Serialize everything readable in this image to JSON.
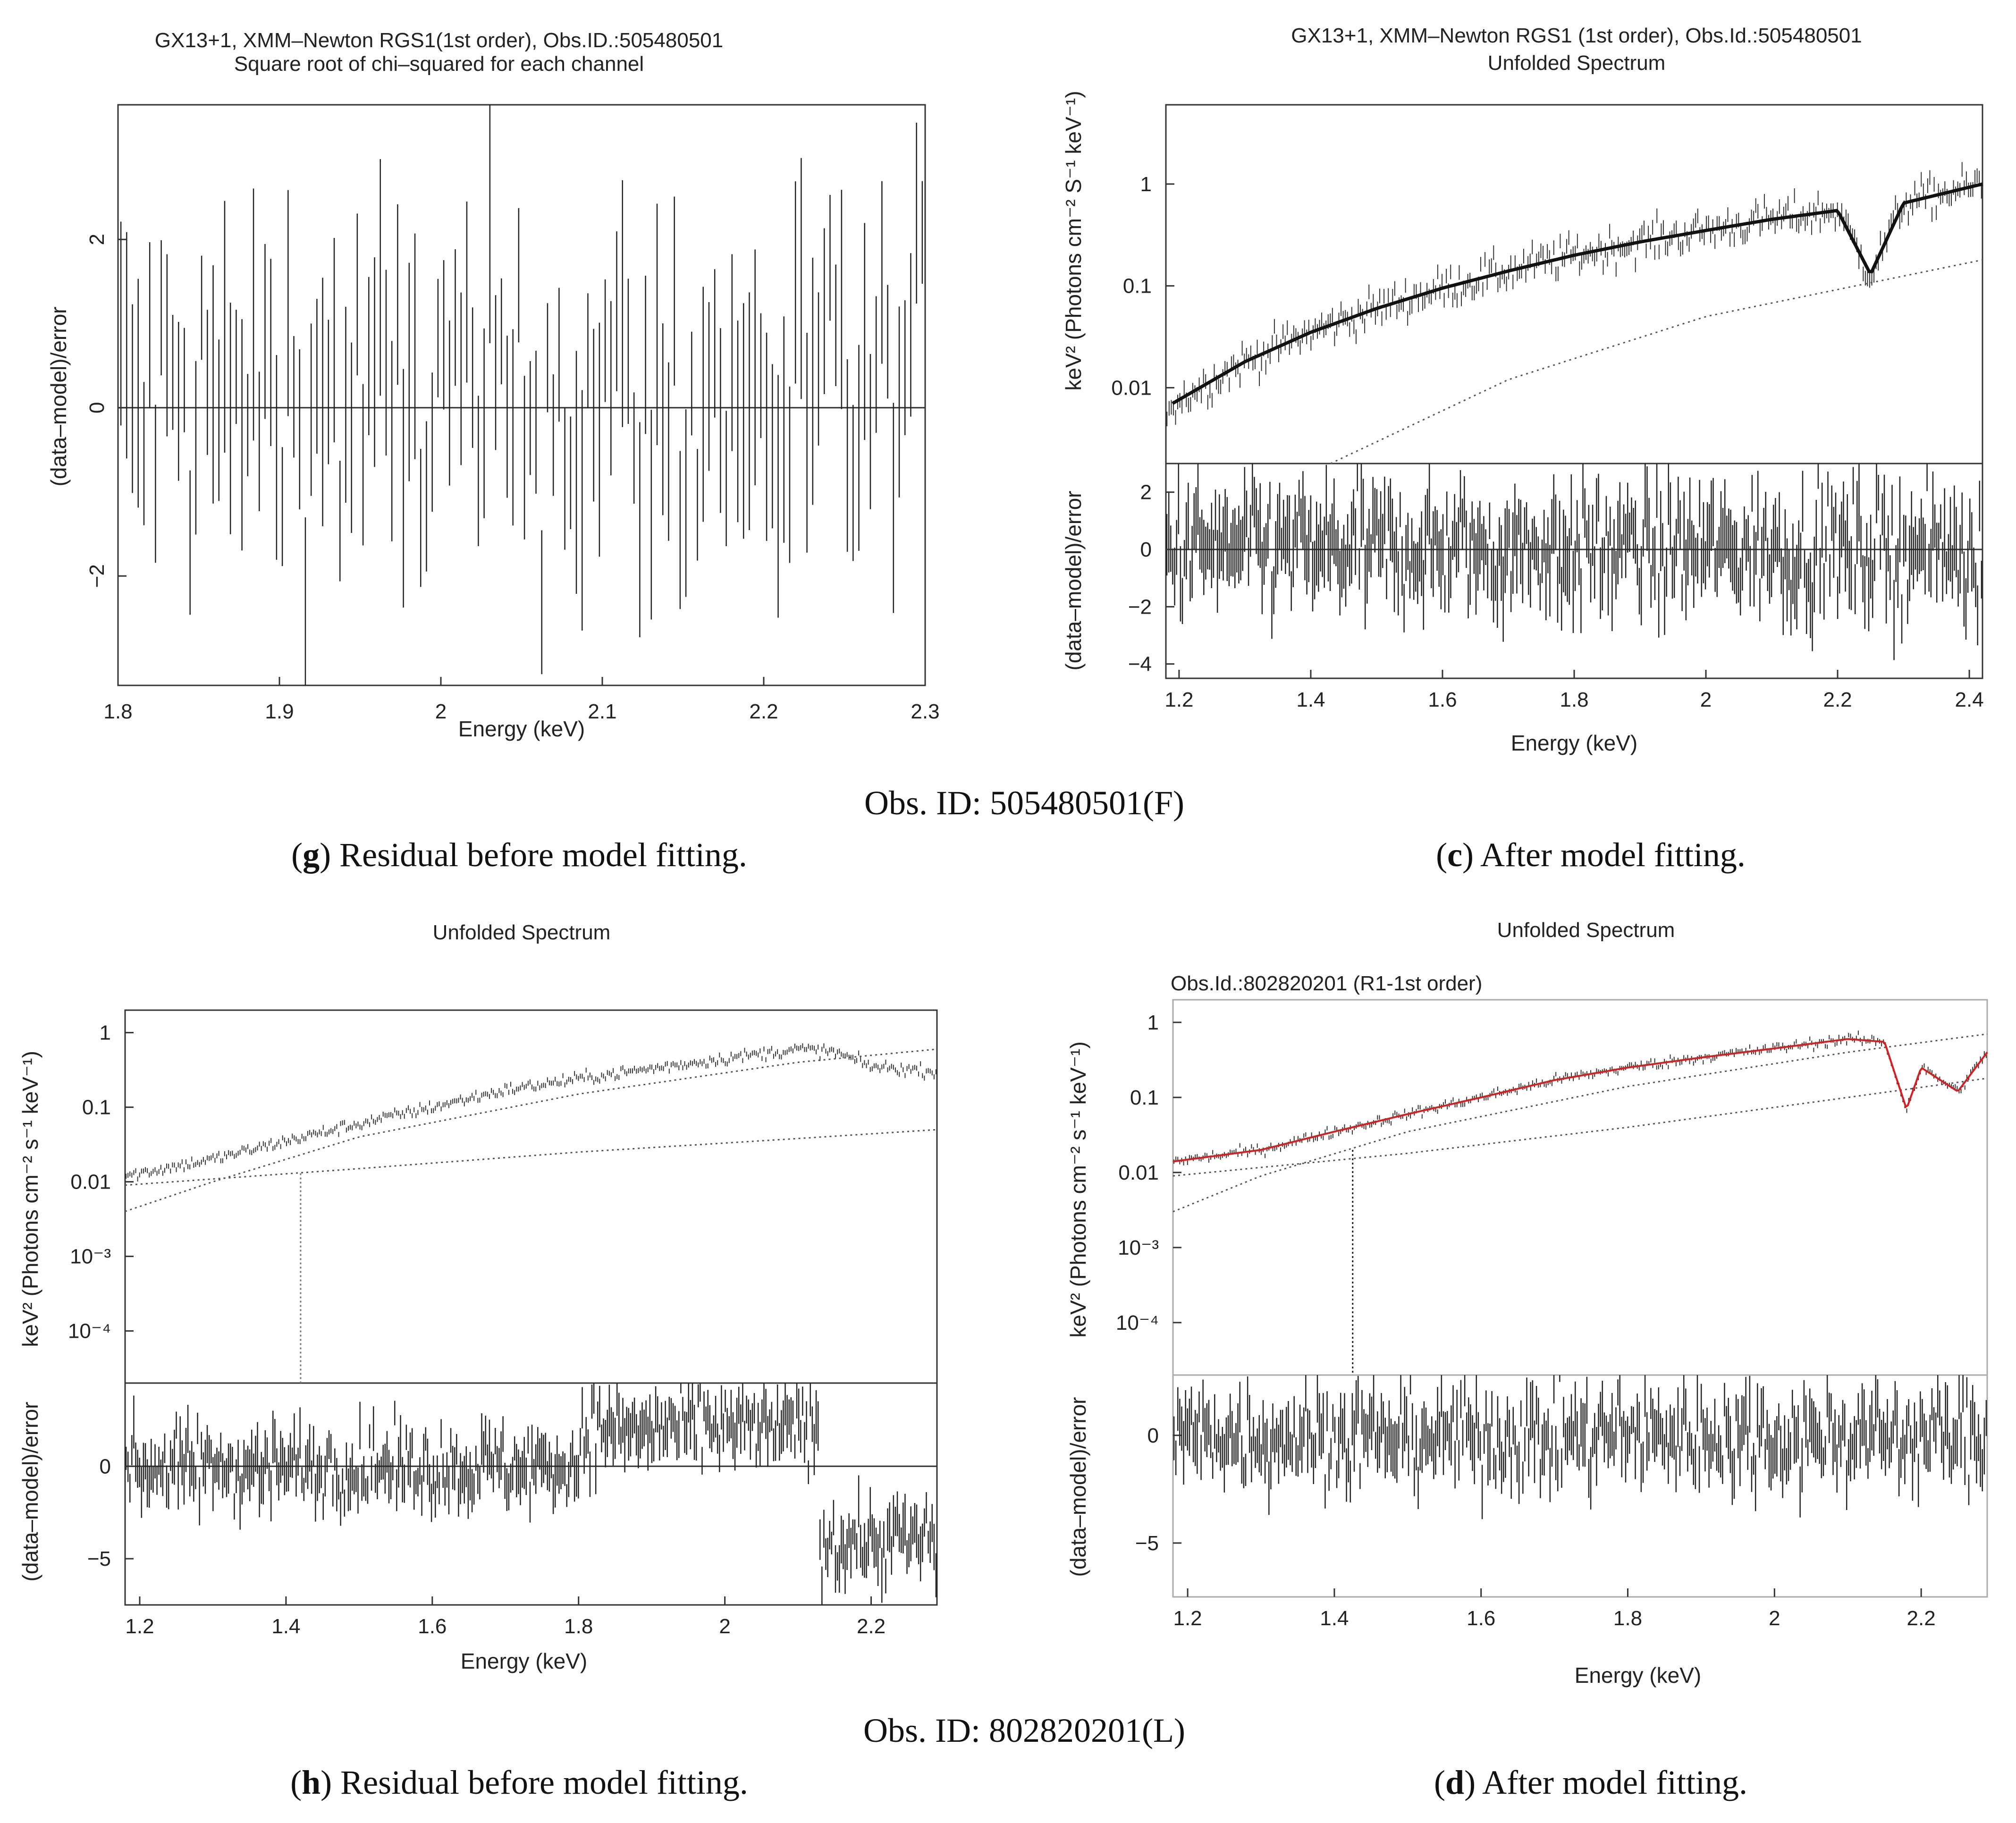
{
  "captions": {
    "obs_F": "Obs. ID: 505480501(F)",
    "obs_L": "Obs. ID: 802820201(L)",
    "g": {
      "letter": "g",
      "text": ") Residual before model fitting."
    },
    "c": {
      "letter": "c",
      "text": ") After model fitting."
    },
    "h": {
      "letter": "h",
      "text": ") Residual before model fitting."
    },
    "d": {
      "letter": "d",
      "text": ") After model fitting."
    }
  },
  "colors": {
    "data": "#111111",
    "model": "#111111",
    "model_red": "#d42020",
    "frame": "#333333"
  },
  "chart_data": [
    {
      "id": "g",
      "type": "scatter",
      "title": "GX13+1, XMM–Newton RGS1(1st order), Obs.ID.:505480501",
      "subtitle": "Square root of chi–squared for each channel",
      "xlabel": "Energy (keV)",
      "ylabel": "(data–model)/error",
      "xlim": [
        1.8,
        2.3
      ],
      "ylim": [
        -3.3,
        3.6
      ],
      "xticks": [
        "1.8",
        "1.9",
        "2",
        "2.1",
        "2.2",
        "2.3"
      ],
      "yticks": [
        "−2",
        "0",
        "2"
      ],
      "series": [
        {
          "name": "residuals",
          "description": "scattered residuals around 0, mostly within ±2 with error bars of about ±1",
          "n_points": 140,
          "mean": 0,
          "spread": 1.0
        }
      ]
    },
    {
      "id": "c",
      "type": "line",
      "title": "GX13+1, XMM–Newton RGS1 (1st order), Obs.Id.:505480501",
      "subtitle": "Unfolded Spectrum",
      "xlabel": "Energy (keV)",
      "ylabel_top": "keV² (Photons cm⁻² S⁻¹ keV⁻¹)",
      "ylabel_bottom": "(data–model)/error",
      "xlim": [
        1.18,
        2.42
      ],
      "ylim_top_log": [
        0.0018,
        6
      ],
      "ylim_bottom": [
        -4.5,
        3
      ],
      "xticks": [
        "1.2",
        "1.4",
        "1.6",
        "1.8",
        "2",
        "2.2",
        "2.4"
      ],
      "yticks_top": [
        "0.01",
        "0.1",
        "1"
      ],
      "yticks_bottom": [
        "−4",
        "−2",
        "0",
        "2"
      ],
      "series": [
        {
          "name": "model",
          "x": [
            1.19,
            1.3,
            1.4,
            1.5,
            1.6,
            1.7,
            1.8,
            1.9,
            2.0,
            2.1,
            2.2,
            2.25,
            2.3,
            2.42
          ],
          "y": [
            0.007,
            0.018,
            0.035,
            0.06,
            0.095,
            0.14,
            0.2,
            0.27,
            0.35,
            0.45,
            0.55,
            0.13,
            0.65,
            1.0
          ]
        },
        {
          "name": "continuum (dotted)",
          "x": [
            1.43,
            1.7,
            2.0,
            2.42
          ],
          "y": [
            0.0018,
            0.012,
            0.05,
            0.18
          ]
        }
      ]
    },
    {
      "id": "h",
      "type": "line",
      "title": "Unfolded Spectrum",
      "xlabel": "Energy (keV)",
      "ylabel_top": "keV² (Photons cm⁻² s⁻¹ keV⁻¹)",
      "ylabel_bottom": "(data–model)/error",
      "xlim": [
        1.18,
        2.29
      ],
      "ylim_top_log": [
        2e-05,
        2
      ],
      "ylim_bottom": [
        -7.5,
        4.5
      ],
      "xticks": [
        "1.2",
        "1.4",
        "1.6",
        "1.8",
        "2",
        "2.2"
      ],
      "yticks_top": [
        "10⁻⁴",
        "10⁻³",
        "0.01",
        "0.1",
        "1"
      ],
      "yticks_bottom": [
        "−5",
        "0"
      ],
      "series": [
        {
          "name": "data/model",
          "x": [
            1.18,
            1.3,
            1.4,
            1.5,
            1.6,
            1.7,
            1.8,
            1.9,
            2.0,
            2.1,
            2.15,
            2.2,
            2.29
          ],
          "y": [
            0.012,
            0.02,
            0.035,
            0.06,
            0.1,
            0.17,
            0.24,
            0.33,
            0.45,
            0.6,
            0.55,
            0.35,
            0.3
          ]
        },
        {
          "name": "component 1 (dotted)",
          "x": [
            1.18,
            1.3,
            1.5,
            1.8,
            2.1,
            2.29
          ],
          "y": [
            0.004,
            0.01,
            0.04,
            0.15,
            0.4,
            0.6
          ]
        },
        {
          "name": "component 2 (dotted)",
          "x": [
            1.18,
            1.5,
            1.8,
            2.1,
            2.29
          ],
          "y": [
            0.009,
            0.015,
            0.025,
            0.038,
            0.05
          ]
        }
      ]
    },
    {
      "id": "d",
      "type": "line",
      "title": "Unfolded Spectrum",
      "subtitle": "Obs.Id.:802820201 (R1-1st order)",
      "xlabel": "Energy (keV)",
      "ylabel_top": "keV² (Photons cm⁻² s⁻¹ keV⁻¹)",
      "ylabel_bottom": "(data–model)/error",
      "xlim": [
        1.18,
        2.29
      ],
      "ylim_top_log": [
        2e-05,
        2
      ],
      "ylim_bottom": [
        -7.5,
        2.8
      ],
      "xticks": [
        "1.2",
        "1.4",
        "1.6",
        "1.8",
        "2",
        "2.2"
      ],
      "yticks_top": [
        "10⁻⁴",
        "10⁻³",
        "0.01",
        "0.1",
        "1"
      ],
      "yticks_bottom": [
        "−5",
        "0"
      ],
      "series": [
        {
          "name": "model (red)",
          "x": [
            1.18,
            1.3,
            1.4,
            1.5,
            1.6,
            1.7,
            1.8,
            1.9,
            2.0,
            2.1,
            2.15,
            2.18,
            2.2,
            2.25,
            2.29
          ],
          "y": [
            0.014,
            0.02,
            0.035,
            0.06,
            0.1,
            0.17,
            0.25,
            0.34,
            0.45,
            0.6,
            0.55,
            0.07,
            0.25,
            0.12,
            0.4
          ]
        },
        {
          "name": "component 1 (dotted)",
          "x": [
            1.18,
            1.3,
            1.5,
            1.8,
            2.1,
            2.29
          ],
          "y": [
            0.003,
            0.009,
            0.035,
            0.14,
            0.4,
            0.7
          ]
        },
        {
          "name": "component 2 (dotted)",
          "x": [
            1.18,
            1.5,
            1.8,
            2.1,
            2.29
          ],
          "y": [
            0.009,
            0.018,
            0.04,
            0.1,
            0.18
          ]
        }
      ]
    }
  ]
}
